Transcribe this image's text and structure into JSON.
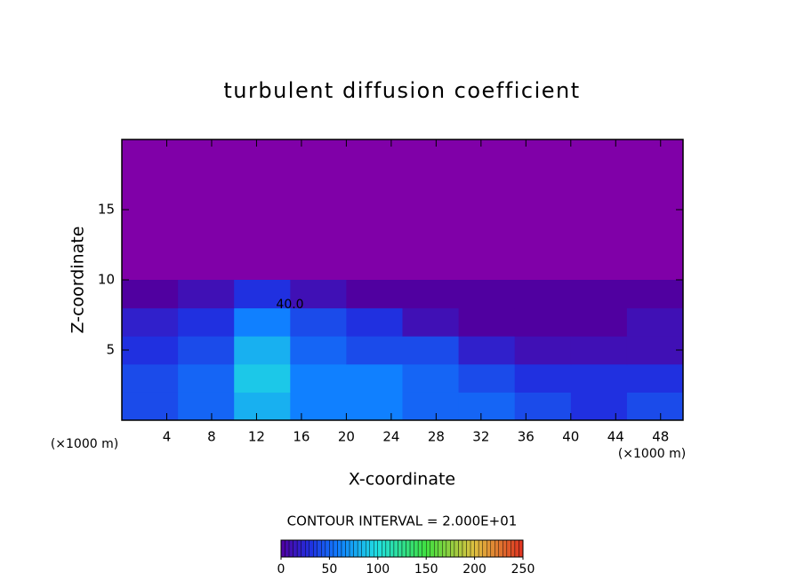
{
  "chart_data": {
    "type": "heatmap",
    "title": "turbulent diffusion coefficient",
    "x_label": "X-coordinate",
    "y_label": "Z-coordinate",
    "x_unit": "(×1000 m)",
    "annotation": "CONTOUR INTERVAL = 2.000E+01",
    "contour_label": "40.0",
    "xlim": [
      0,
      50
    ],
    "ylim": [
      0,
      20
    ],
    "xticks": [
      4,
      8,
      12,
      16,
      20,
      24,
      28,
      32,
      36,
      40,
      44,
      48
    ],
    "yticks": [
      5,
      10,
      15
    ],
    "x": [
      2.5,
      7.5,
      12.5,
      17.5,
      22.5,
      27.5,
      32.5,
      37.5,
      42.5,
      47.5
    ],
    "y": [
      1,
      3,
      5,
      7,
      9
    ],
    "values": [
      [
        40,
        50,
        80,
        60,
        60,
        50,
        50,
        40,
        30,
        40
      ],
      [
        40,
        50,
        90,
        60,
        60,
        50,
        40,
        30,
        30,
        30
      ],
      [
        30,
        40,
        80,
        50,
        40,
        40,
        20,
        10,
        10,
        10
      ],
      [
        20,
        30,
        60,
        40,
        30,
        10,
        0,
        0,
        0,
        10
      ],
      [
        0,
        10,
        30,
        10,
        0,
        0,
        0,
        0,
        0,
        0
      ]
    ],
    "background_color": "#8000a8",
    "clim": [
      0,
      250
    ],
    "colorbar_ticks": [
      0,
      50,
      100,
      150,
      200,
      250
    ],
    "colorscale": [
      [
        0,
        "#5000a0"
      ],
      [
        30,
        "#2030e0"
      ],
      [
        60,
        "#1080ff"
      ],
      [
        100,
        "#20e0e0"
      ],
      [
        150,
        "#40e040"
      ],
      [
        200,
        "#e0c040"
      ],
      [
        250,
        "#e03020"
      ]
    ]
  }
}
